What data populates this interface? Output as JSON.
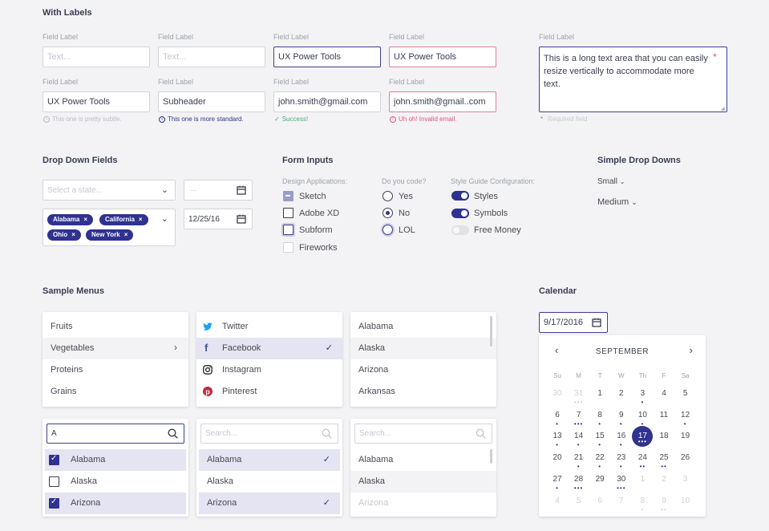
{
  "labels": {
    "section": "With Labels",
    "field": "Field Label"
  },
  "fields": {
    "r1": [
      "Text...",
      "Text...",
      "UX Power Tools",
      "UX Power Tools"
    ],
    "r2": [
      "UX Power Tools",
      "Subheader",
      "john.smith@gmail.com",
      "john.smith@gmail..com"
    ],
    "help": [
      "This one is pretty subtle.",
      "This one is more standard.",
      "Success!",
      "Uh oh! Invalid email."
    ],
    "textarea": "This is a long text area that you can easily resize vertically to accommodate more text.",
    "required": "Required field",
    "asterisk": "*"
  },
  "dropdown": {
    "title": "Drop Down Fields",
    "state_placeholder": "Select a state...",
    "date_placeholder": "...",
    "date_value": "12/25/16",
    "tags": [
      "Alabama",
      "California",
      "Ohio",
      "New York"
    ],
    "tag_close": "×"
  },
  "form_inputs": {
    "title": "Form Inputs",
    "design_label": "Design Applications:",
    "design": [
      "Sketch",
      "Adobe XD",
      "Subform",
      "Fireworks"
    ],
    "code_label": "Do you code?",
    "code": [
      "Yes",
      "No",
      "LOL"
    ],
    "style_label": "Style Guide Configuration:",
    "style": [
      "Styles",
      "Symbols",
      "Free Money"
    ]
  },
  "simple_dd": {
    "title": "Simple Drop Downs",
    "items": [
      "Small",
      "Medium"
    ]
  },
  "menus": {
    "title": "Sample Menus",
    "food": [
      "Fruits",
      "Vegetables",
      "Proteins",
      "Grains"
    ],
    "social": [
      "Twitter",
      "Facebook",
      "Instagram",
      "Pinterest"
    ],
    "states": [
      "Alabama",
      "Alaska",
      "Arizona",
      "Arkansas"
    ],
    "search_value": "A",
    "search_placeholder": "Search...",
    "check_list": [
      "Alabama",
      "Alaska",
      "Arizona"
    ],
    "check_sel": [
      "Alabama",
      "Alaska",
      "Arizona"
    ],
    "plain_list": [
      "Alabama",
      "Alaska",
      "Arizona"
    ]
  },
  "calendar": {
    "title": "Calendar",
    "value": "9/17/2016",
    "month": "SEPTEMBER",
    "prev": "‹",
    "next": "›",
    "days": [
      "Su",
      "M",
      "T",
      "W",
      "Th",
      "F",
      "Sa"
    ],
    "weeks": [
      [
        [
          "30",
          0,
          1
        ],
        [
          "31",
          3,
          1
        ],
        [
          "1",
          0,
          0
        ],
        [
          "2",
          0,
          0
        ],
        [
          "3",
          1,
          0
        ],
        [
          "4",
          0,
          0
        ],
        [
          "5",
          0,
          0
        ]
      ],
      [
        [
          "6",
          1,
          0
        ],
        [
          "7",
          3,
          0
        ],
        [
          "8",
          1,
          0
        ],
        [
          "9",
          1,
          0
        ],
        [
          "10",
          1,
          0
        ],
        [
          "11",
          0,
          0
        ],
        [
          "12",
          1,
          0
        ]
      ],
      [
        [
          "13",
          1,
          0
        ],
        [
          "14",
          1,
          0
        ],
        [
          "15",
          1,
          0
        ],
        [
          "16",
          1,
          0
        ],
        [
          "17",
          3,
          2
        ],
        [
          "18",
          0,
          0
        ],
        [
          "19",
          0,
          0
        ]
      ],
      [
        [
          "20",
          0,
          0
        ],
        [
          "21",
          1,
          0
        ],
        [
          "22",
          1,
          0
        ],
        [
          "23",
          1,
          0
        ],
        [
          "24",
          2,
          0
        ],
        [
          "25",
          2,
          0
        ],
        [
          "26",
          0,
          0
        ]
      ],
      [
        [
          "27",
          1,
          0
        ],
        [
          "28",
          3,
          0
        ],
        [
          "29",
          0,
          0
        ],
        [
          "30",
          3,
          0
        ],
        [
          "1",
          0,
          1
        ],
        [
          "2",
          0,
          1
        ],
        [
          "3",
          0,
          1
        ]
      ],
      [
        [
          "4",
          0,
          1
        ],
        [
          "5",
          0,
          1
        ],
        [
          "6",
          0,
          1
        ],
        [
          "7",
          0,
          1
        ],
        [
          "8",
          1,
          1
        ],
        [
          "9",
          2,
          1
        ],
        [
          "10",
          0,
          1
        ]
      ]
    ]
  },
  "colors": {
    "accent": "#2f3290",
    "error": "#e2557a",
    "success": "#3cb371",
    "subtle": "#9fa1ad"
  }
}
